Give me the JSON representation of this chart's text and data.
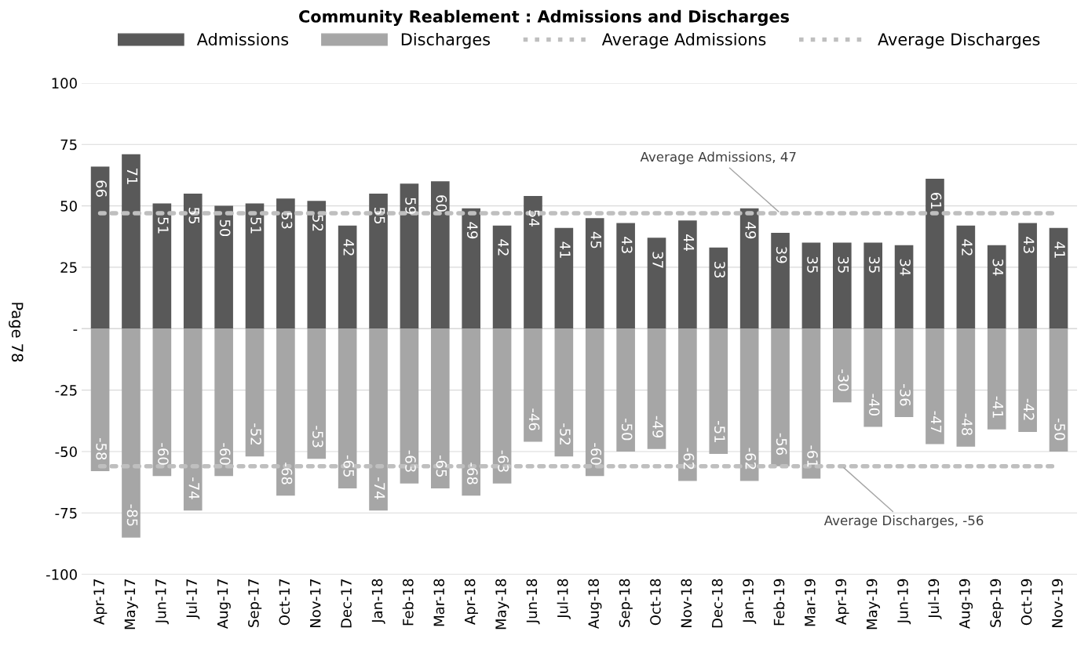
{
  "chart_data": {
    "type": "bar",
    "title": "Community Reablement : Admissions and Discharges",
    "categories": [
      "Apr-17",
      "May-17",
      "Jun-17",
      "Jul-17",
      "Aug-17",
      "Sep-17",
      "Oct-17",
      "Nov-17",
      "Dec-17",
      "Jan-18",
      "Feb-18",
      "Mar-18",
      "Apr-18",
      "May-18",
      "Jun-18",
      "Jul-18",
      "Aug-18",
      "Sep-18",
      "Oct-18",
      "Nov-18",
      "Dec-18",
      "Jan-19",
      "Feb-19",
      "Mar-19",
      "Apr-19",
      "May-19",
      "Jun-19",
      "Jul-19",
      "Aug-19",
      "Sep-19",
      "Oct-19",
      "Nov-19"
    ],
    "series": [
      {
        "name": "Admissions",
        "color": "#595959",
        "data_labels": true,
        "values": [
          66,
          71,
          51,
          55,
          50,
          51,
          53,
          52,
          42,
          55,
          59,
          60,
          49,
          42,
          54,
          41,
          45,
          43,
          37,
          44,
          33,
          49,
          39,
          35,
          35,
          35,
          34,
          61,
          42,
          34,
          43,
          41
        ]
      },
      {
        "name": "Discharges",
        "color": "#a6a6a6",
        "data_labels": true,
        "values": [
          -58,
          -85,
          -60,
          -74,
          -60,
          -52,
          -68,
          -53,
          -65,
          -74,
          -63,
          -65,
          -68,
          -63,
          -46,
          -52,
          -60,
          -50,
          -49,
          -62,
          -51,
          -62,
          -56,
          -61,
          -30,
          -40,
          -36,
          -47,
          -48,
          -41,
          -42,
          -50
        ]
      },
      {
        "name": "Average Admissions",
        "type": "line",
        "line_style": "dotted",
        "marker": "none",
        "color": "#bfbfbf",
        "values": [
          47,
          47,
          47,
          47,
          47,
          47,
          47,
          47,
          47,
          47,
          47,
          47,
          47,
          47,
          47,
          47,
          47,
          47,
          47,
          47,
          47,
          47,
          47,
          47,
          47,
          47,
          47,
          47,
          47,
          47,
          47,
          47
        ]
      },
      {
        "name": "Average Discharges",
        "type": "line",
        "line_style": "dotted",
        "marker": "none",
        "color": "#bfbfbf",
        "values": [
          -56,
          -56,
          -56,
          -56,
          -56,
          -56,
          -56,
          -56,
          -56,
          -56,
          -56,
          -56,
          -56,
          -56,
          -56,
          -56,
          -56,
          -56,
          -56,
          -56,
          -56,
          -56,
          -56,
          -56,
          -56,
          -56,
          -56,
          -56,
          -56,
          -56,
          -56,
          -56
        ]
      }
    ],
    "ylim": [
      -100,
      100
    ],
    "yticks": [
      -100,
      -75,
      -50,
      -25,
      {
        "value": 0,
        "label": "-"
      },
      25,
      50,
      75,
      100
    ],
    "grid": "y",
    "legend": "top",
    "stacked": true,
    "annotations": [
      {
        "text": "Average Admissions, 47",
        "x": "Feb-19",
        "y": 47
      },
      {
        "text": "Average Discharges, -56",
        "x": "Apr-19",
        "y": -56
      },
      "Page 78"
    ]
  }
}
